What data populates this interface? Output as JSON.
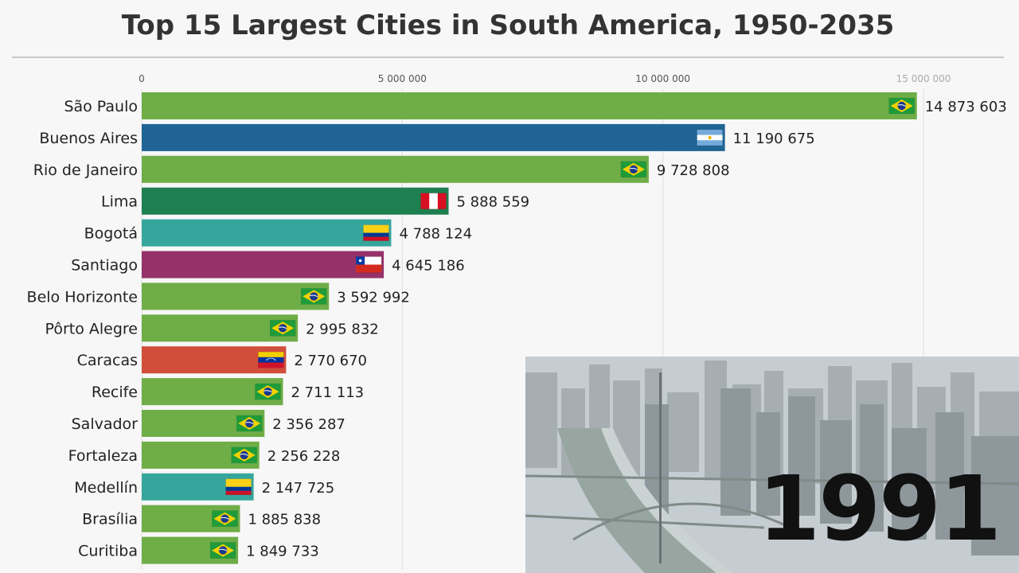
{
  "title": "Top 15 Largest Cities in South America, 1950-2035",
  "year": "1991",
  "colors": {
    "brazil": "#6fad47",
    "argentina": "#1f6494",
    "peru": "#1e7f50",
    "colombia": "#36a69c",
    "chile": "#943269",
    "venezuela": "#d04e3a"
  },
  "chart_data": {
    "type": "bar",
    "orientation": "horizontal",
    "title": "Top 15 Largest Cities in South America, 1950-2035",
    "xlim": [
      0,
      15500000
    ],
    "ticks": [
      {
        "value": 0,
        "label": "0"
      },
      {
        "value": 5000000,
        "label": "5 000 000"
      },
      {
        "value": 10000000,
        "label": "10 000 000"
      },
      {
        "value": 15000000,
        "label": "15 000 000"
      }
    ],
    "bars": [
      {
        "city": "São Paulo",
        "value": 14873603,
        "label": "14 873 603",
        "country": "brazil",
        "flag": "brazil-flag-icon"
      },
      {
        "city": "Buenos Aires",
        "value": 11190675,
        "label": "11 190 675",
        "country": "argentina",
        "flag": "argentina-flag-icon"
      },
      {
        "city": "Rio de Janeiro",
        "value": 9728808,
        "label": "9 728 808",
        "country": "brazil",
        "flag": "brazil-flag-icon"
      },
      {
        "city": "Lima",
        "value": 5888559,
        "label": "5 888 559",
        "country": "peru",
        "flag": "peru-flag-icon"
      },
      {
        "city": "Bogotá",
        "value": 4788124,
        "label": "4 788 124",
        "country": "colombia",
        "flag": "colombia-flag-icon"
      },
      {
        "city": "Santiago",
        "value": 4645186,
        "label": "4 645 186",
        "country": "chile",
        "flag": "chile-flag-icon"
      },
      {
        "city": "Belo Horizonte",
        "value": 3592992,
        "label": "3 592 992",
        "country": "brazil",
        "flag": "brazil-flag-icon"
      },
      {
        "city": "Pôrto Alegre",
        "value": 2995832,
        "label": "2 995 832",
        "country": "brazil",
        "flag": "brazil-flag-icon"
      },
      {
        "city": "Caracas",
        "value": 2770670,
        "label": "2 770 670",
        "country": "venezuela",
        "flag": "venezuela-flag-icon"
      },
      {
        "city": "Recife",
        "value": 2711113,
        "label": "2 711 113",
        "country": "brazil",
        "flag": "brazil-flag-icon"
      },
      {
        "city": "Salvador",
        "value": 2356287,
        "label": "2 356 287",
        "country": "brazil",
        "flag": "brazil-flag-icon"
      },
      {
        "city": "Fortaleza",
        "value": 2256228,
        "label": "2 256 228",
        "country": "brazil",
        "flag": "brazil-flag-icon"
      },
      {
        "city": "Medellín",
        "value": 2147725,
        "label": "2 147 725",
        "country": "colombia",
        "flag": "colombia-flag-icon"
      },
      {
        "city": "Brasília",
        "value": 1885838,
        "label": "1 885 838",
        "country": "brazil",
        "flag": "brazil-flag-icon"
      },
      {
        "city": "Curitiba",
        "value": 1849733,
        "label": "1 849 733",
        "country": "brazil",
        "flag": "brazil-flag-icon"
      }
    ]
  }
}
